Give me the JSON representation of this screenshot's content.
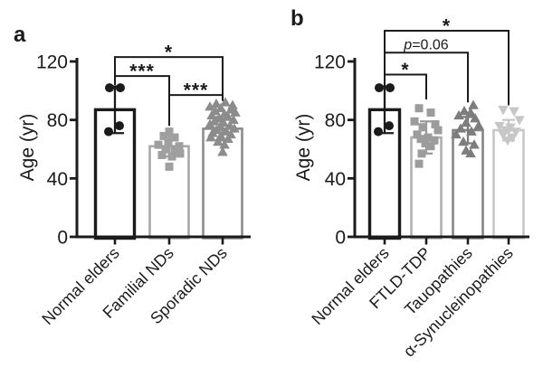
{
  "figure": {
    "background": "#ffffff",
    "axis_color": "#1b1b1b",
    "bracket_color": "#1b1b1b",
    "bar_fill": "#ffffff"
  },
  "chart_data": [
    {
      "type": "bar",
      "panel_label": "a",
      "title": "",
      "xlabel": "",
      "ylabel": "Age (yr)",
      "ylim": [
        0,
        120
      ],
      "yticks": [
        0,
        40,
        80,
        120
      ],
      "grid": false,
      "legend_position": "none",
      "categories": [
        "Normal elders",
        "Familial NDs",
        "Sporadic NDs"
      ],
      "series": [
        {
          "name": "Normal elders",
          "marker": "circle",
          "color": "#1b1b1b",
          "bar_stroke": "#1b1b1b",
          "bar_stroke_width": 3.4,
          "mean": 87,
          "error_low": 71,
          "error_high": 103,
          "points": [
            [
              102,
              -6
            ],
            [
              102,
              6
            ],
            [
              76,
              5
            ],
            [
              72,
              -7
            ]
          ]
        },
        {
          "name": "Familial NDs",
          "marker": "square",
          "color": "#9f9f9f",
          "bar_stroke": "#a8a8a8",
          "bar_stroke_width": 2.6,
          "mean": 62,
          "error_low": 55,
          "error_high": 69,
          "points": [
            [
              72,
              0
            ],
            [
              69,
              -6
            ],
            [
              68,
              6
            ],
            [
              65,
              -1
            ],
            [
              63,
              -12
            ],
            [
              62,
              11
            ],
            [
              60,
              -4
            ],
            [
              60,
              6
            ],
            [
              57,
              12
            ],
            [
              56,
              -8
            ],
            [
              55,
              3
            ],
            [
              48,
              0
            ]
          ]
        },
        {
          "name": "Sporadic NDs",
          "marker": "triangle-up",
          "color": "#8c8c8c",
          "bar_stroke": "#8c8c8c",
          "bar_stroke_width": 2.6,
          "mean": 74,
          "error_low": 66,
          "error_high": 82,
          "points": [
            [
              92,
              3
            ],
            [
              91,
              -7
            ],
            [
              90,
              11
            ],
            [
              89,
              -14
            ],
            [
              88,
              -2
            ],
            [
              87,
              9
            ],
            [
              86,
              -8
            ],
            [
              85,
              14
            ],
            [
              84,
              2
            ],
            [
              83,
              -12
            ],
            [
              82,
              6
            ],
            [
              81,
              -4
            ],
            [
              80,
              12
            ],
            [
              79,
              -9
            ],
            [
              78,
              1
            ],
            [
              77,
              -14
            ],
            [
              76,
              8
            ],
            [
              75,
              -3
            ],
            [
              74,
              13
            ],
            [
              73,
              -7
            ],
            [
              72,
              4
            ],
            [
              71,
              -11
            ],
            [
              70,
              9
            ],
            [
              69,
              -2
            ],
            [
              68,
              -13
            ],
            [
              67,
              6
            ],
            [
              65,
              -5
            ],
            [
              63,
              2
            ],
            [
              58,
              0
            ]
          ]
        }
      ],
      "significance": [
        {
          "from": 0,
          "to": 2,
          "label": "*",
          "y": 123,
          "drop_from": 104,
          "drop_to": 96
        },
        {
          "from": 0,
          "to": 1,
          "label": "***",
          "y": 110,
          "drop_from": 104,
          "drop_to": 76
        },
        {
          "from": 1,
          "to": 2,
          "label": "***",
          "y": 97,
          "drop_from": 76,
          "drop_to": 93
        }
      ]
    },
    {
      "type": "bar",
      "panel_label": "b",
      "title": "",
      "xlabel": "",
      "ylabel": "Age (yr)",
      "ylim": [
        0,
        120
      ],
      "yticks": [
        0,
        40,
        80,
        120
      ],
      "grid": false,
      "legend_position": "none",
      "categories": [
        "Normal elders",
        "FTLD-TDP",
        "Tauopathies",
        "α-Synucleinopathies"
      ],
      "series": [
        {
          "name": "Normal elders",
          "marker": "circle",
          "color": "#1b1b1b",
          "bar_stroke": "#1b1b1b",
          "bar_stroke_width": 3.4,
          "mean": 87,
          "error_low": 71,
          "error_high": 103,
          "points": [
            [
              102,
              -6
            ],
            [
              102,
              6
            ],
            [
              76,
              5
            ],
            [
              72,
              -7
            ]
          ]
        },
        {
          "name": "FTLD-TDP",
          "marker": "square",
          "color": "#9c9c9c",
          "bar_stroke": "#b0b0b0",
          "bar_stroke_width": 2.6,
          "mean": 68,
          "error_low": 57,
          "error_high": 79,
          "points": [
            [
              88,
              -8
            ],
            [
              85,
              5
            ],
            [
              79,
              -13
            ],
            [
              77,
              10
            ],
            [
              75,
              -4
            ],
            [
              73,
              13
            ],
            [
              70,
              -10
            ],
            [
              68,
              2
            ],
            [
              67,
              -6
            ],
            [
              66,
              9
            ],
            [
              64,
              -1
            ],
            [
              62,
              5
            ],
            [
              57,
              -5
            ],
            [
              50,
              -8
            ]
          ]
        },
        {
          "name": "Tauopathies",
          "marker": "triangle-up",
          "color": "#7d7d7d",
          "bar_stroke": "#858585",
          "bar_stroke_width": 2.6,
          "mean": 73,
          "error_low": 64,
          "error_high": 82,
          "points": [
            [
              90,
              6
            ],
            [
              86,
              -4
            ],
            [
              85,
              3
            ],
            [
              83,
              -10
            ],
            [
              81,
              8
            ],
            [
              78,
              -2
            ],
            [
              76,
              12
            ],
            [
              74,
              -8
            ],
            [
              72,
              4
            ],
            [
              70,
              -13
            ],
            [
              65,
              -5
            ],
            [
              63,
              7
            ],
            [
              59,
              -2
            ],
            [
              57,
              3
            ]
          ]
        },
        {
          "name": "α-Synucleinopathies",
          "marker": "triangle-down",
          "color": "#c7c7c7",
          "bar_stroke": "#c7c7c7",
          "bar_stroke_width": 2.6,
          "mean": 73,
          "error_low": 66,
          "error_high": 80,
          "points": [
            [
              87,
              -6
            ],
            [
              86,
              6
            ],
            [
              80,
              12
            ],
            [
              76,
              -10
            ],
            [
              75,
              2
            ],
            [
              73,
              -3
            ],
            [
              72,
              8
            ],
            [
              70,
              -6
            ],
            [
              68,
              4
            ],
            [
              66,
              -1
            ]
          ]
        }
      ],
      "significance": [
        {
          "from": 0,
          "to": 3,
          "label": "*",
          "y": 141,
          "drop_from": 103,
          "drop_to": 90
        },
        {
          "from": 0,
          "to": 2,
          "label": "p=0.06",
          "y": 126,
          "drop_from": 103,
          "drop_to": 92
        },
        {
          "from": 0,
          "to": 1,
          "label": "*",
          "y": 111,
          "drop_from": 103,
          "drop_to": 94
        }
      ]
    }
  ]
}
